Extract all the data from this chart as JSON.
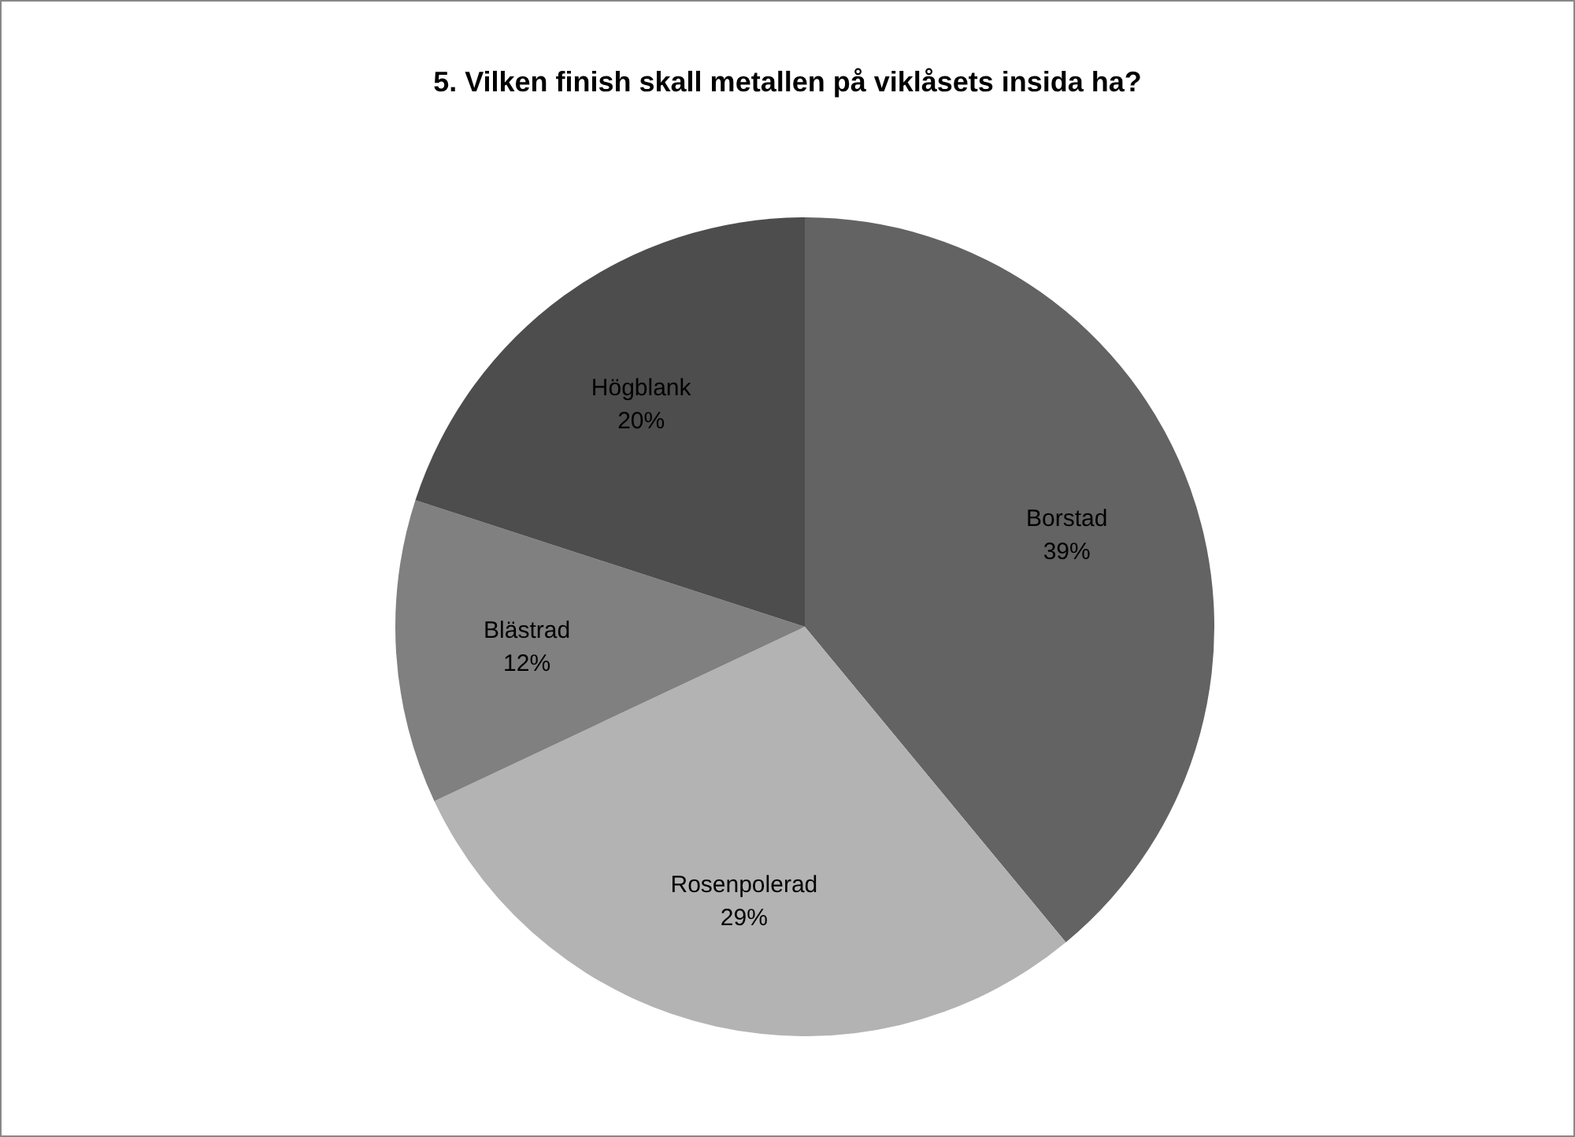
{
  "chart_data": {
    "type": "pie",
    "title": "5. Vilken finish skall metallen på viklåsets insida ha?",
    "categories": [
      "Borstad",
      "Rosenpolerad",
      "Blästrad",
      "Högblank"
    ],
    "values": [
      39,
      29,
      12,
      20
    ],
    "value_labels": [
      "39%",
      "29%",
      "12%",
      "20%"
    ],
    "colors": [
      "#636363",
      "#b3b3b3",
      "#808080",
      "#4d4d4d"
    ],
    "legend": false
  }
}
